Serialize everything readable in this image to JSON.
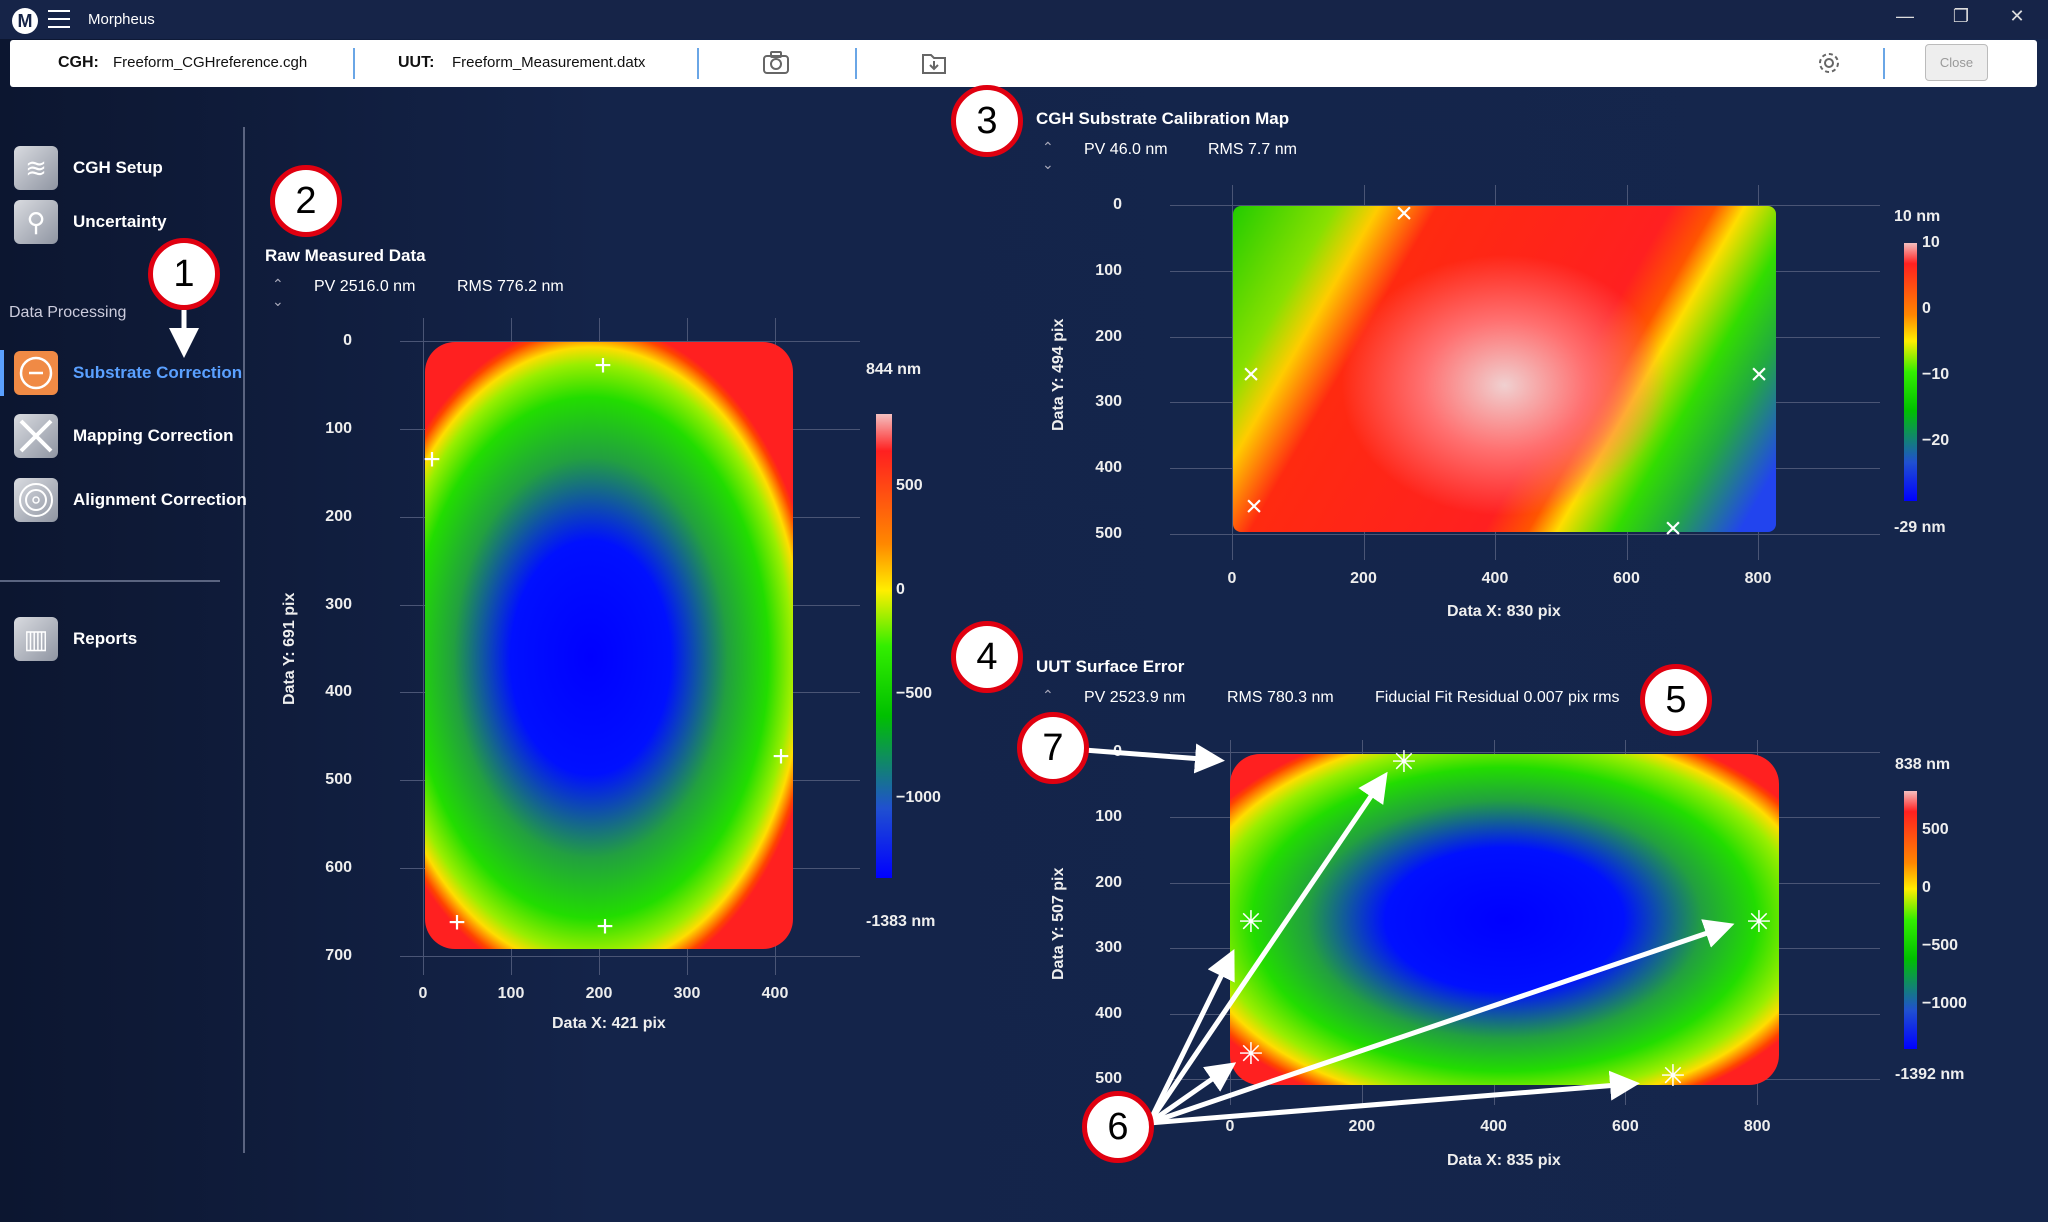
{
  "app": {
    "title": "Morpheus",
    "logo": "M"
  },
  "window_controls": {
    "minimize": "—",
    "restore": "❐",
    "close": "✕"
  },
  "toolbar": {
    "cgh_label": "CGH:",
    "cgh_file": "Freeform_CGHreference.cgh",
    "uut_label": "UUT:",
    "uut_file": "Freeform_Measurement.datx",
    "camera_icon": "camera-icon",
    "folder_icon": "folder-download-icon",
    "gear_icon": "gear-icon",
    "close_label": "Close"
  },
  "sidebar": {
    "items": [
      {
        "label": "CGH Setup"
      },
      {
        "label": "Uncertainty"
      },
      {
        "label": "Substrate Correction",
        "active": true
      },
      {
        "label": "Mapping Correction"
      },
      {
        "label": "Alignment Correction"
      },
      {
        "label": "Reports"
      }
    ],
    "section": "Data Processing"
  },
  "plots": [
    {
      "title": "Raw Measured Data",
      "pv": "PV 2516.0 nm",
      "rms": "RMS 776.2 nm",
      "xlabel": "Data X: 421 pix",
      "ylabel": "Data Y: 691 pix",
      "xticks": [
        0,
        100,
        200,
        300,
        400
      ],
      "yticks": [
        0,
        100,
        200,
        300,
        400,
        500,
        600,
        700
      ],
      "cb_max": "844 nm",
      "cb_min": "-1383 nm",
      "cb_range": [
        844,
        -1383
      ],
      "cb_ticks": [
        500,
        0,
        -500,
        -1000
      ]
    },
    {
      "title": "CGH Substrate Calibration Map",
      "pv": "PV 46.0 nm",
      "rms": "RMS 7.7 nm",
      "xlabel": "Data X: 830 pix",
      "ylabel": "Data Y: 494 pix",
      "xticks": [
        0,
        200,
        400,
        600,
        800
      ],
      "yticks": [
        0,
        100,
        200,
        300,
        400,
        500
      ],
      "cb_max": "10 nm",
      "cb_min": "-29 nm",
      "cb_range": [
        10,
        -29
      ],
      "cb_ticks": [
        10,
        0,
        -10,
        -20
      ]
    },
    {
      "title": "UUT Surface Error",
      "pv": "PV 2523.9 nm",
      "rms": "RMS 780.3 nm",
      "residual": "Fiducial Fit Residual 0.007 pix rms",
      "xlabel": "Data X: 835 pix",
      "ylabel": "Data Y: 507 pix",
      "xticks": [
        0,
        200,
        400,
        600,
        800
      ],
      "yticks": [
        0,
        100,
        200,
        300,
        400,
        500
      ],
      "cb_max": "838 nm",
      "cb_min": "-1392 nm",
      "cb_range": [
        838,
        -1392
      ],
      "cb_ticks": [
        500,
        0,
        -500,
        -1000
      ]
    }
  ],
  "annotations": [
    "1",
    "2",
    "3",
    "4",
    "5",
    "6",
    "7"
  ],
  "colors": {
    "accent": "#5aa0ff",
    "active_icon": "#f08a45",
    "annotation": "#e00010",
    "background": "#15264c"
  }
}
